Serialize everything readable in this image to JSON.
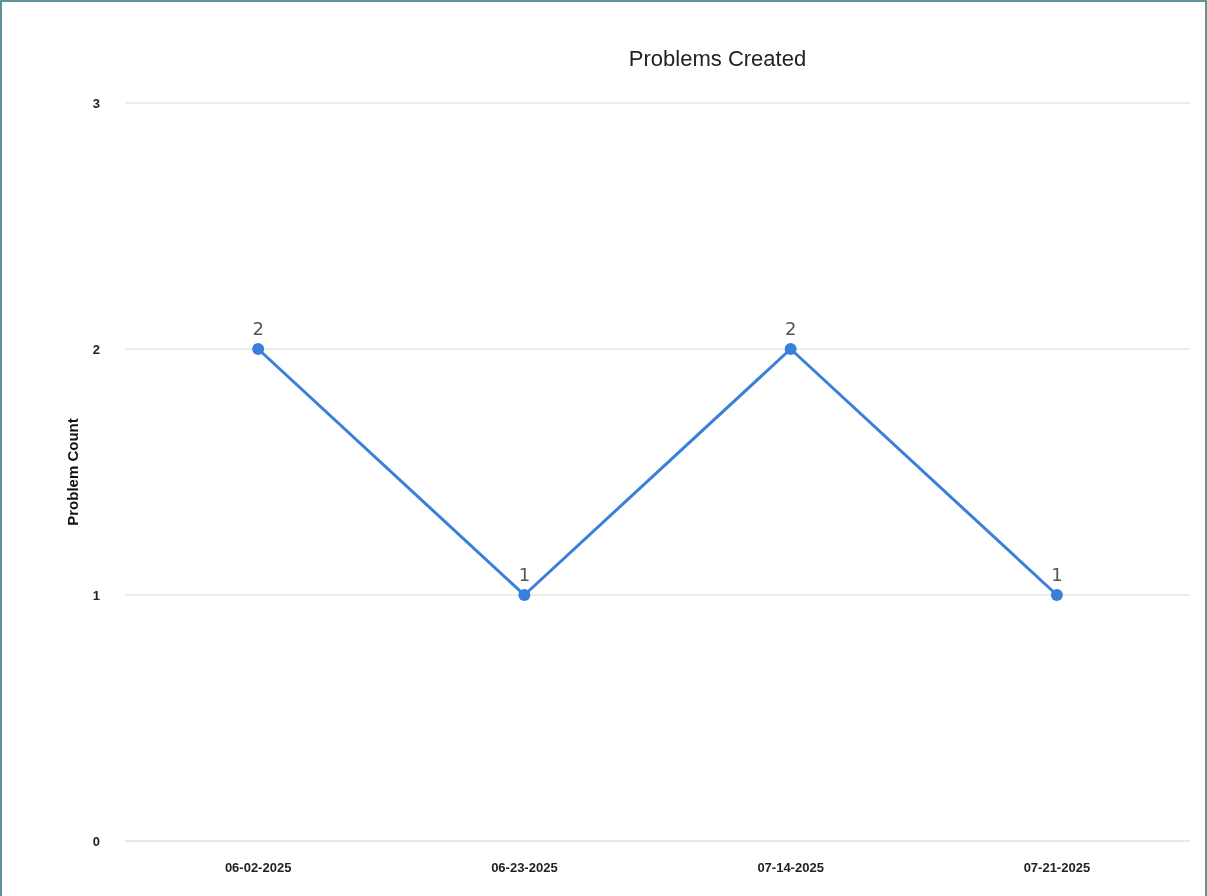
{
  "chart_data": {
    "type": "line",
    "title": "Problems Created",
    "ylabel": "Problem Count",
    "categories": [
      "06-02-2025",
      "06-23-2025",
      "07-14-2025",
      "07-21-2025"
    ],
    "series": [
      {
        "color": "#3a7fd9",
        "values": [
          2,
          1,
          2,
          1
        ]
      }
    ],
    "ylim": [
      0,
      3
    ],
    "yticks": [
      0,
      1,
      2,
      3
    ],
    "grid": "y",
    "data_labels": true,
    "marker": "circle",
    "line_style": "solid"
  }
}
